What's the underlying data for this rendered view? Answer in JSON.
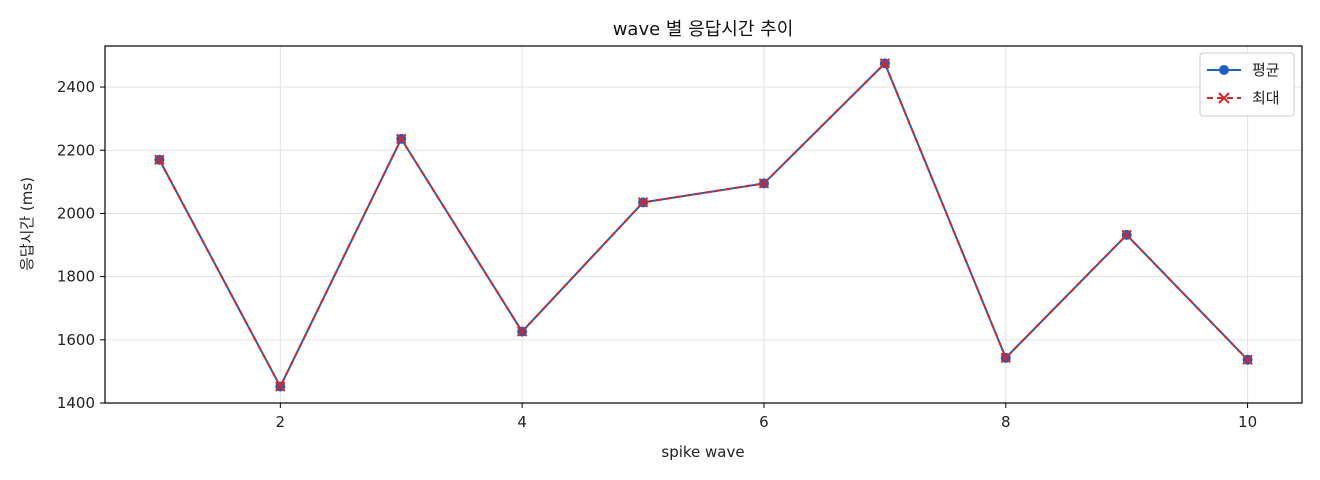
{
  "chart_data": {
    "type": "line",
    "title": "wave 별 응답시간 추이",
    "xlabel": "spike wave",
    "ylabel": "응답시간 (ms)",
    "x": [
      1,
      2,
      3,
      4,
      5,
      6,
      7,
      8,
      9,
      10
    ],
    "xlim": [
      0.55,
      10.45
    ],
    "ylim": [
      1400,
      2530
    ],
    "xticks": [
      2,
      4,
      6,
      8,
      10
    ],
    "yticks": [
      1400,
      1600,
      1800,
      2000,
      2200,
      2400
    ],
    "grid": true,
    "legend_position": "top-right",
    "series": [
      {
        "name": "평균",
        "values": [
          2170,
          1452,
          2236,
          1626,
          2035,
          2095,
          2475,
          1543,
          1932,
          1537
        ],
        "color": "#1f5fbf",
        "line_style": "solid",
        "marker": "circle"
      },
      {
        "name": "최대",
        "values": [
          2170,
          1452,
          2236,
          1626,
          2035,
          2095,
          2475,
          1543,
          1932,
          1537
        ],
        "color": "#d62728",
        "line_style": "dashed",
        "marker": "x"
      }
    ]
  }
}
